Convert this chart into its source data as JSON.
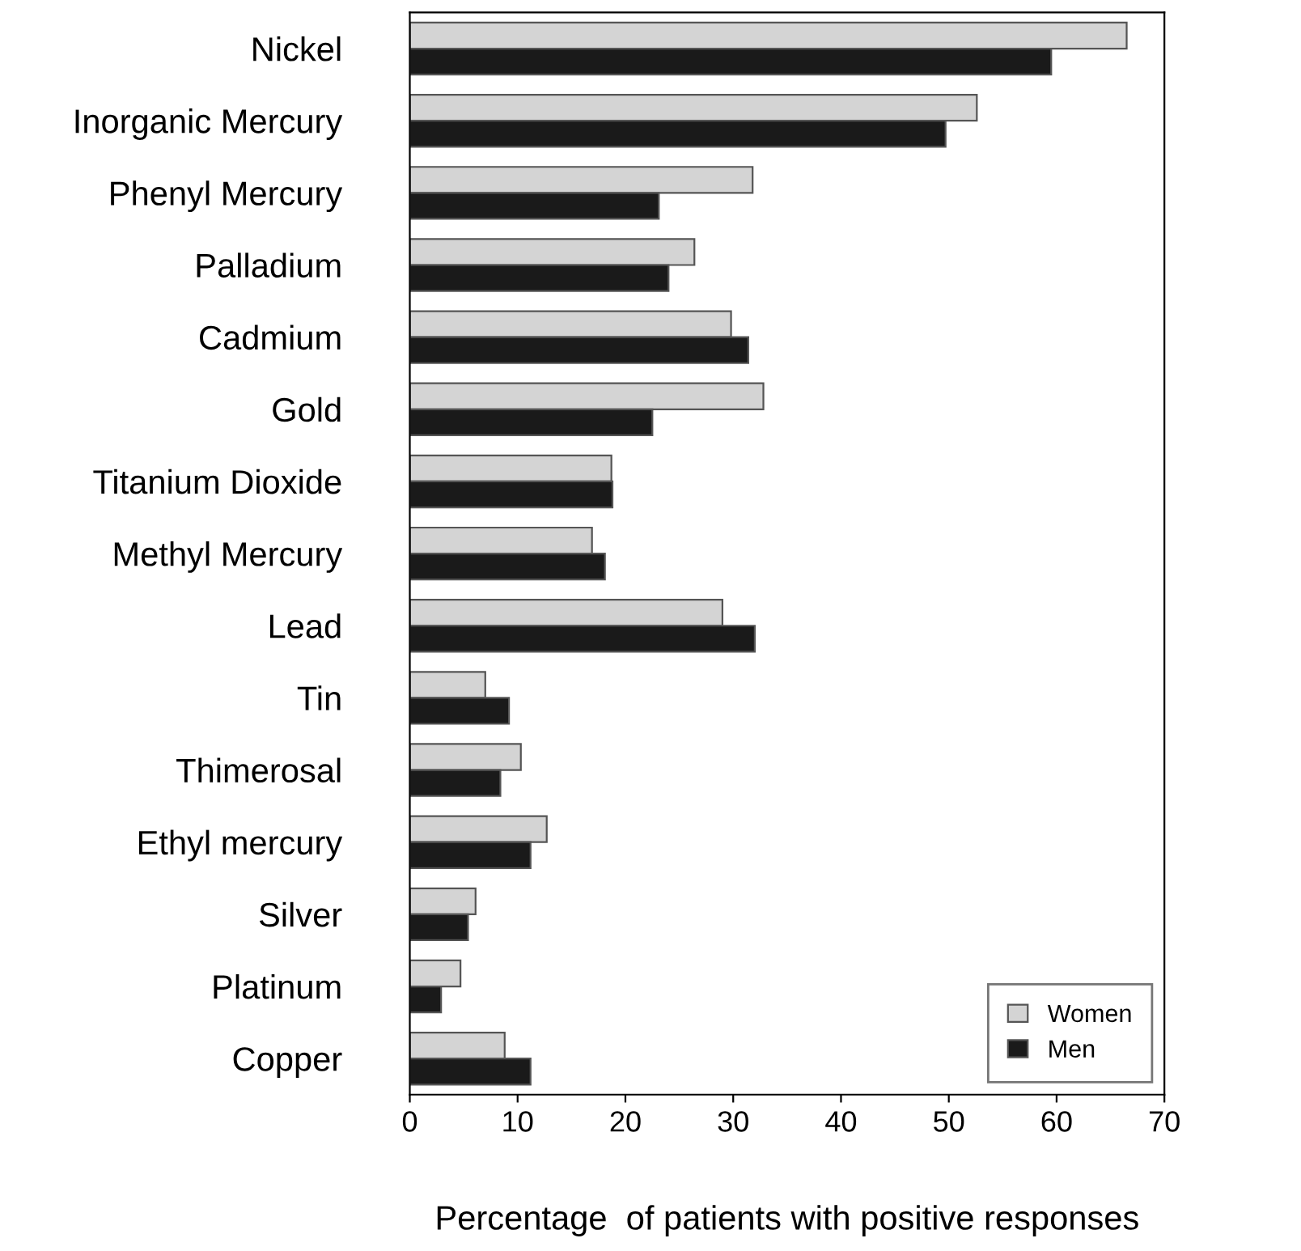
{
  "chart_data": {
    "type": "bar",
    "orientation": "horizontal",
    "xlabel": "Percentage  of patients with positive responses",
    "categories": [
      "Nickel",
      "Inorganic Mercury",
      "Phenyl Mercury",
      "Palladium",
      "Cadmium",
      "Gold",
      "Titanium Dioxide",
      "Methyl Mercury",
      "Lead",
      "Tin",
      "Thimerosal",
      "Ethyl mercury",
      "Silver",
      "Platinum",
      "Copper"
    ],
    "series": [
      {
        "name": "Women",
        "color": "#d4d4d4",
        "values": [
          66.5,
          52.6,
          31.8,
          26.4,
          29.8,
          32.8,
          18.7,
          16.9,
          29.0,
          7.0,
          10.3,
          12.7,
          6.1,
          4.7,
          8.8
        ]
      },
      {
        "name": "Men",
        "color": "#1a1a1a",
        "values": [
          59.5,
          49.7,
          23.1,
          24.0,
          31.4,
          22.5,
          18.8,
          18.1,
          32.0,
          9.2,
          8.4,
          11.2,
          5.4,
          2.9,
          11.2
        ]
      }
    ],
    "xlim": [
      0,
      70
    ],
    "xticks": [
      0,
      10,
      20,
      30,
      40,
      50,
      60,
      70
    ],
    "grid": false,
    "legend": "bottom right"
  }
}
